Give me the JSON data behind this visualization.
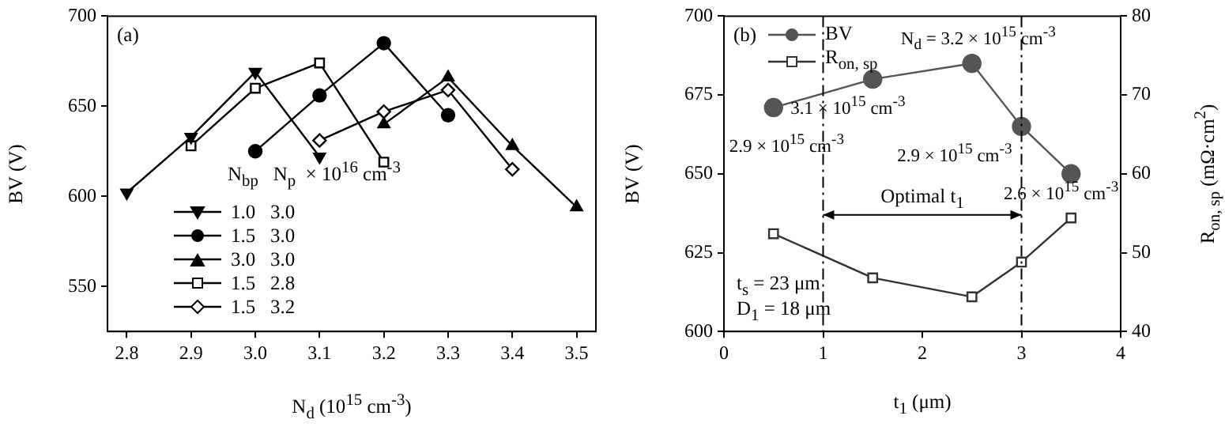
{
  "chart_data": [
    {
      "type": "line",
      "title": "(a)",
      "xlabel": "N$_{d}$ (10$^{15}$ cm$^{-3}$)",
      "ylabel": "BV (V)",
      "legend_title": "N$_{bp}$   N$_{p}$  × 10$^{16}$ cm$^{-3}$",
      "legend": "bottom left",
      "grid": false,
      "xlim": [
        2.77,
        3.53
      ],
      "xticks": [
        2.8,
        2.9,
        {
          "value": 3,
          "label": "3.0"
        },
        3.1,
        3.2,
        3.3,
        3.4,
        3.5
      ],
      "ylim": [
        525,
        700
      ],
      "yticks": [
        550,
        600,
        650,
        700
      ],
      "series": [
        {
          "name": "1.0   3.0",
          "color": "#000000",
          "marker": "triangle_down",
          "x": [
            2.8,
            2.9,
            3.0,
            3.1
          ],
          "values": [
            602,
            633,
            669,
            622
          ]
        },
        {
          "name": "1.5   3.0",
          "color": "#000000",
          "marker": "circle",
          "x": [
            3.0,
            3.1,
            3.2,
            3.3
          ],
          "values": [
            625,
            656,
            685,
            645
          ]
        },
        {
          "name": "3.0   3.0",
          "color": "#000000",
          "marker": "triangle",
          "x": [
            3.2,
            3.3,
            3.4,
            3.5
          ],
          "values": [
            640,
            666,
            628,
            594
          ]
        },
        {
          "name": "1.5   2.8",
          "color": "#000000",
          "marker": "square",
          "x": [
            2.9,
            3.0,
            3.1,
            3.2
          ],
          "values": [
            628,
            660,
            674,
            619
          ]
        },
        {
          "name": "1.5   3.2",
          "color": "#000000",
          "marker": "diamond",
          "x": [
            3.1,
            3.2,
            3.3,
            3.4
          ],
          "values": [
            631,
            647,
            659,
            615
          ]
        }
      ]
    },
    {
      "type": "line",
      "title": "(b)",
      "xlabel": "t$_{1}$ (μm)",
      "ylabel": "BV (V)",
      "y2label": "R$_{on, sp}$ (mΩ·cm$^{2}$)",
      "legend": "top left",
      "grid": false,
      "x": [
        0.5,
        1.5,
        2.5,
        3.0,
        3.5
      ],
      "xlim": [
        0,
        4
      ],
      "xticks": [
        0,
        1,
        2,
        3,
        4
      ],
      "ylim": [
        600,
        700
      ],
      "yticks": [
        600,
        625,
        650,
        675,
        700
      ],
      "y2lim": [
        40,
        80
      ],
      "y2ticks": [
        40,
        50,
        60,
        70,
        80
      ],
      "series": [
        {
          "name": "BV",
          "color": "#555555",
          "marker": "circle",
          "values": [
            671,
            680,
            685,
            665,
            650
          ]
        },
        {
          "name": "R$_{on, sp}$",
          "color": "#333333",
          "marker": "square",
          "axis": "y2",
          "values": [
            52.4,
            46.8,
            44.4,
            48.8,
            54.4
          ]
        }
      ],
      "ref_lines": [
        {
          "axis": "x",
          "value": 1,
          "color": "#000000",
          "line_style": "dashed"
        },
        {
          "axis": "x",
          "value": 3,
          "color": "#000000",
          "line_style": "dashed"
        }
      ],
      "annotations": [
        {
          "text": "N$_{d}$ = 3.2 × 10$^{15}$ cm$^{-3}$",
          "x": 2.5,
          "y": 685
        },
        {
          "text": "3.1 × 10$^{15}$ cm$^{-3}$",
          "x": 1.5,
          "y": 680
        },
        {
          "text": "2.9 × 10$^{15}$ cm$^{-3}$",
          "x": 0.5,
          "y": 671
        },
        {
          "text": "2.9 × 10$^{15}$ cm$^{-3}$",
          "x": 3.0,
          "y": 665
        },
        {
          "text": "2.6 × 10$^{15}$ cm$^{-3}$",
          "x": 3.5,
          "y": 650
        },
        "Optimal t$_{1}$",
        "t$_{s}$ = 23 μm",
        "D$_{1}$ = 18 μm"
      ]
    }
  ]
}
